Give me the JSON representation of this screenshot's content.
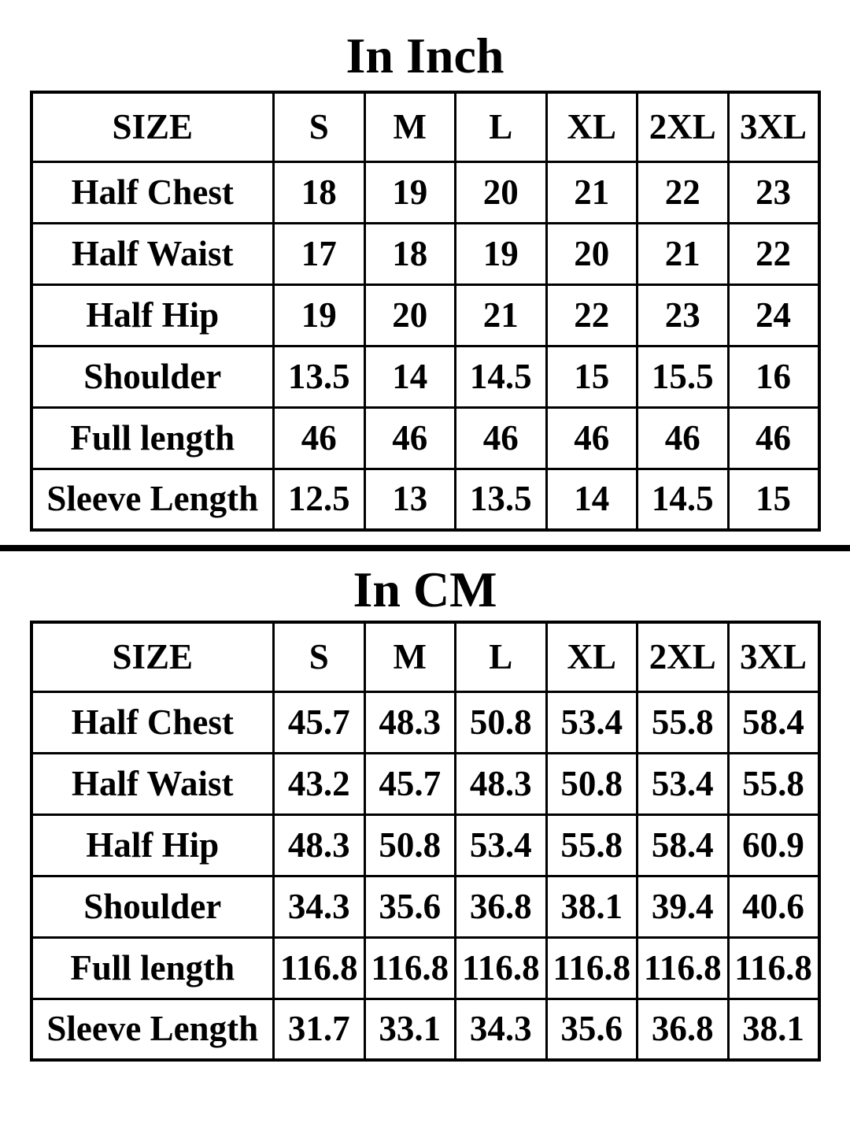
{
  "page": {
    "background": "#ffffff",
    "text_color": "#000000",
    "divider_color": "#000000"
  },
  "sections": [
    {
      "id": "inch",
      "title": "In Inch",
      "table": {
        "columns": [
          "SIZE",
          "S",
          "M",
          "L",
          "XL",
          "2XL",
          "3XL"
        ],
        "rows": [
          {
            "label": "Half Chest",
            "values": [
              "18",
              "19",
              "20",
              "21",
              "22",
              "23"
            ]
          },
          {
            "label": "Half Waist",
            "values": [
              "17",
              "18",
              "19",
              "20",
              "21",
              "22"
            ]
          },
          {
            "label": "Half Hip",
            "values": [
              "19",
              "20",
              "21",
              "22",
              "23",
              "24"
            ]
          },
          {
            "label": "Shoulder",
            "values": [
              "13.5",
              "14",
              "14.5",
              "15",
              "15.5",
              "16"
            ]
          },
          {
            "label": "Full length",
            "values": [
              "46",
              "46",
              "46",
              "46",
              "46",
              "46"
            ]
          },
          {
            "label": "Sleeve Length",
            "values": [
              "12.5",
              "13",
              "13.5",
              "14",
              "14.5",
              "15"
            ]
          }
        ]
      }
    },
    {
      "id": "cm",
      "title": "In CM",
      "table": {
        "columns": [
          "SIZE",
          "S",
          "M",
          "L",
          "XL",
          "2XL",
          "3XL"
        ],
        "rows": [
          {
            "label": "Half Chest",
            "values": [
              "45.7",
              "48.3",
              "50.8",
              "53.4",
              "55.8",
              "58.4"
            ]
          },
          {
            "label": "Half Waist",
            "values": [
              "43.2",
              "45.7",
              "48.3",
              "50.8",
              "53.4",
              "55.8"
            ]
          },
          {
            "label": "Half Hip",
            "values": [
              "48.3",
              "50.8",
              "53.4",
              "55.8",
              "58.4",
              "60.9"
            ]
          },
          {
            "label": "Shoulder",
            "values": [
              "34.3",
              "35.6",
              "36.8",
              "38.1",
              "39.4",
              "40.6"
            ]
          },
          {
            "label": "Full length",
            "values": [
              "116.8",
              "116.8",
              "116.8",
              "116.8",
              "116.8",
              "116.8"
            ]
          },
          {
            "label": "Sleeve Length",
            "values": [
              "31.7",
              "33.1",
              "34.3",
              "35.6",
              "36.8",
              "38.1"
            ]
          }
        ]
      }
    }
  ],
  "chart_data": [
    {
      "type": "table",
      "title": "In Inch",
      "columns": [
        "SIZE",
        "S",
        "M",
        "L",
        "XL",
        "2XL",
        "3XL"
      ],
      "rows": [
        [
          "Half Chest",
          18,
          19,
          20,
          21,
          22,
          23
        ],
        [
          "Half Waist",
          17,
          18,
          19,
          20,
          21,
          22
        ],
        [
          "Half Hip",
          19,
          20,
          21,
          22,
          23,
          24
        ],
        [
          "Shoulder",
          13.5,
          14,
          14.5,
          15,
          15.5,
          16
        ],
        [
          "Full length",
          46,
          46,
          46,
          46,
          46,
          46
        ],
        [
          "Sleeve Length",
          12.5,
          13,
          13.5,
          14,
          14.5,
          15
        ]
      ]
    },
    {
      "type": "table",
      "title": "In CM",
      "columns": [
        "SIZE",
        "S",
        "M",
        "L",
        "XL",
        "2XL",
        "3XL"
      ],
      "rows": [
        [
          "Half Chest",
          45.7,
          48.3,
          50.8,
          53.4,
          55.8,
          58.4
        ],
        [
          "Half Waist",
          43.2,
          45.7,
          48.3,
          50.8,
          53.4,
          55.8
        ],
        [
          "Half Hip",
          48.3,
          50.8,
          53.4,
          55.8,
          58.4,
          60.9
        ],
        [
          "Shoulder",
          34.3,
          35.6,
          36.8,
          38.1,
          39.4,
          40.6
        ],
        [
          "Full length",
          116.8,
          116.8,
          116.8,
          116.8,
          116.8,
          116.8
        ],
        [
          "Sleeve Length",
          31.7,
          33.1,
          34.3,
          35.6,
          36.8,
          38.1
        ]
      ]
    }
  ]
}
